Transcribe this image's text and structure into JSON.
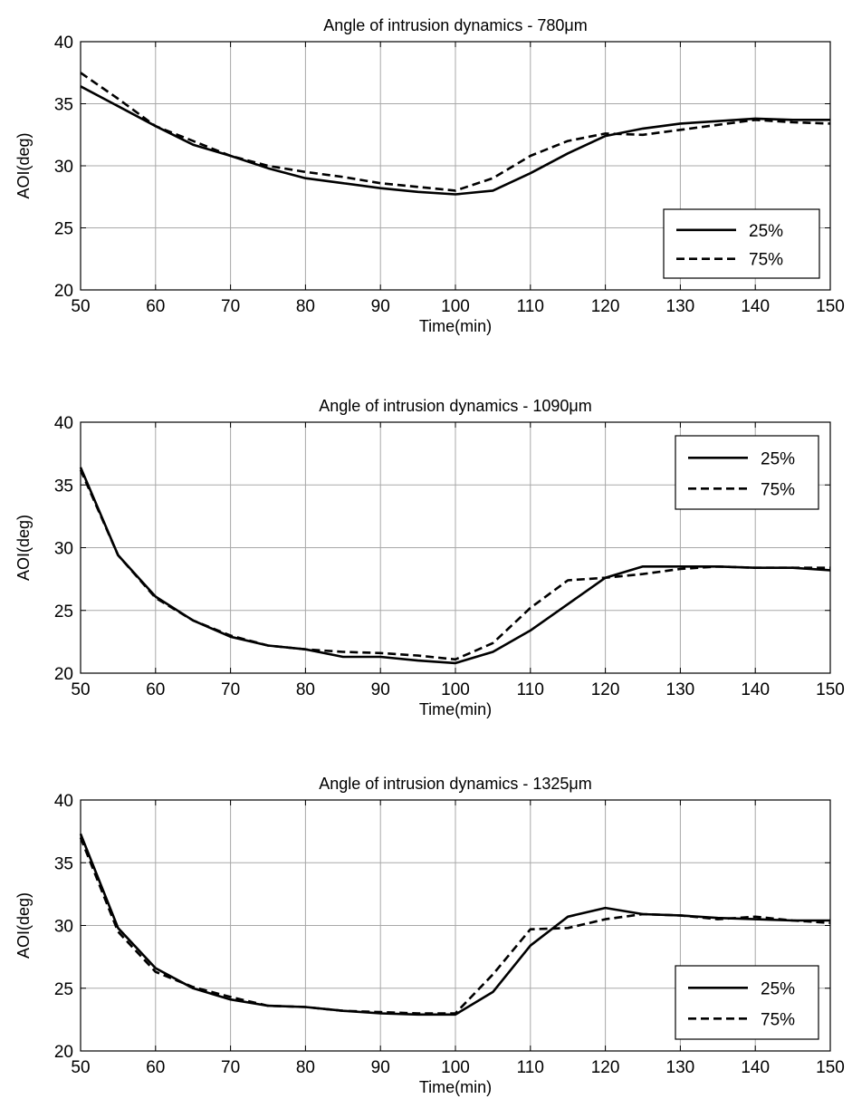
{
  "chart_data": [
    {
      "type": "line",
      "title": "Angle of intrusion dynamics - 780μm",
      "xlabel": "Time(min)",
      "ylabel": "AOI(deg)",
      "xlim": [
        50,
        150
      ],
      "ylim": [
        20,
        40
      ],
      "xticks": [
        50,
        60,
        70,
        80,
        90,
        100,
        110,
        120,
        130,
        140,
        150
      ],
      "yticks": [
        20,
        25,
        30,
        35,
        40
      ],
      "grid": true,
      "legend_position": "bottom-right",
      "x": [
        50,
        55,
        60,
        65,
        70,
        75,
        80,
        85,
        90,
        95,
        100,
        105,
        110,
        115,
        120,
        125,
        130,
        135,
        140,
        145,
        150
      ],
      "series": [
        {
          "name": "25%",
          "style": "solid",
          "values": [
            36.4,
            34.8,
            33.2,
            31.7,
            30.8,
            29.8,
            29.0,
            28.6,
            28.2,
            27.9,
            27.7,
            28.0,
            29.4,
            31.0,
            32.4,
            33.0,
            33.4,
            33.6,
            33.8,
            33.7,
            33.7
          ]
        },
        {
          "name": "75%",
          "style": "dashed",
          "values": [
            37.5,
            35.4,
            33.2,
            32.0,
            30.8,
            30.0,
            29.5,
            29.1,
            28.6,
            28.3,
            28.0,
            29.0,
            30.8,
            32.0,
            32.6,
            32.5,
            32.9,
            33.3,
            33.7,
            33.5,
            33.4
          ]
        }
      ]
    },
    {
      "type": "line",
      "title": "Angle of intrusion dynamics - 1090μm",
      "xlabel": "Time(min)",
      "ylabel": "AOI(deg)",
      "xlim": [
        50,
        150
      ],
      "ylim": [
        20,
        40
      ],
      "xticks": [
        50,
        60,
        70,
        80,
        90,
        100,
        110,
        120,
        130,
        140,
        150
      ],
      "yticks": [
        20,
        25,
        30,
        35,
        40
      ],
      "grid": true,
      "legend_position": "top-right",
      "x": [
        50,
        55,
        60,
        65,
        70,
        75,
        80,
        85,
        90,
        95,
        100,
        105,
        110,
        115,
        120,
        125,
        130,
        135,
        140,
        145,
        150
      ],
      "series": [
        {
          "name": "25%",
          "style": "solid",
          "values": [
            36.4,
            29.4,
            26.1,
            24.2,
            22.9,
            22.2,
            21.9,
            21.3,
            21.3,
            21.0,
            20.8,
            21.7,
            23.4,
            25.5,
            27.6,
            28.5,
            28.5,
            28.5,
            28.4,
            28.4,
            28.2
          ]
        },
        {
          "name": "75%",
          "style": "dashed",
          "values": [
            36.2,
            29.4,
            26.0,
            24.2,
            23.0,
            22.2,
            21.9,
            21.7,
            21.6,
            21.4,
            21.1,
            22.4,
            25.2,
            27.4,
            27.6,
            27.9,
            28.3,
            28.5,
            28.4,
            28.4,
            28.4
          ]
        }
      ]
    },
    {
      "type": "line",
      "title": "Angle of intrusion dynamics - 1325μm",
      "xlabel": "Time(min)",
      "ylabel": "AOI(deg)",
      "xlim": [
        50,
        150
      ],
      "ylim": [
        20,
        40
      ],
      "xticks": [
        50,
        60,
        70,
        80,
        90,
        100,
        110,
        120,
        130,
        140,
        150
      ],
      "yticks": [
        20,
        25,
        30,
        35,
        40
      ],
      "grid": true,
      "legend_position": "bottom-right",
      "x": [
        50,
        55,
        60,
        65,
        70,
        75,
        80,
        85,
        90,
        95,
        100,
        105,
        110,
        115,
        120,
        125,
        130,
        135,
        140,
        145,
        150
      ],
      "series": [
        {
          "name": "25%",
          "style": "solid",
          "values": [
            37.3,
            29.8,
            26.6,
            25.0,
            24.1,
            23.6,
            23.5,
            23.2,
            23.0,
            22.9,
            22.9,
            24.7,
            28.4,
            30.7,
            31.4,
            30.9,
            30.8,
            30.6,
            30.5,
            30.4,
            30.4
          ]
        },
        {
          "name": "75%",
          "style": "dashed",
          "values": [
            37.0,
            29.5,
            26.3,
            25.1,
            24.3,
            23.6,
            23.5,
            23.2,
            23.1,
            23.0,
            23.0,
            26.1,
            29.7,
            29.8,
            30.5,
            30.9,
            30.8,
            30.5,
            30.7,
            30.4,
            30.2
          ]
        }
      ]
    }
  ]
}
